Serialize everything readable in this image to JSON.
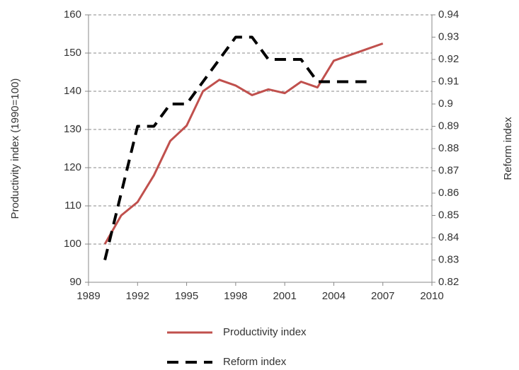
{
  "chart_data": {
    "type": "line",
    "y_label": "Productivity index (1990=100)",
    "y2_label": "Reform index",
    "x": [
      1990,
      1991,
      1992,
      1993,
      1994,
      1995,
      1996,
      1997,
      1998,
      1999,
      2000,
      2001,
      2002,
      2003,
      2004,
      2005,
      2006,
      2007
    ],
    "xlim": [
      1989,
      2010
    ],
    "xticks": [
      1989,
      1992,
      1995,
      1998,
      2001,
      2004,
      2007,
      2010
    ],
    "ylim": [
      90,
      160
    ],
    "yticks": [
      90,
      100,
      110,
      120,
      130,
      140,
      150,
      160
    ],
    "y2lim": [
      0.82,
      0.94
    ],
    "y2ticks": [
      0.82,
      0.83,
      0.84,
      0.85,
      0.86,
      0.87,
      0.88,
      0.89,
      0.9,
      0.91,
      0.92,
      0.93,
      0.94
    ],
    "grid": true,
    "series": [
      {
        "name": "Productivity index",
        "color": "#c0504d",
        "dashed": false,
        "values": [
          100,
          107.5,
          111,
          118,
          127,
          131,
          140,
          143,
          141.5,
          139,
          140.5,
          139.5,
          142.5,
          141,
          148,
          149.5,
          151,
          152.5
        ]
      },
      {
        "name": "Reform index",
        "color": "#000000",
        "dashed": true,
        "axis": "y2",
        "values": [
          0.83,
          0.86,
          0.89,
          0.89,
          0.9,
          0.9,
          0.91,
          0.92,
          0.93,
          0.93,
          0.92,
          0.92,
          0.92,
          0.91,
          0.91,
          0.91,
          0.91,
          null
        ]
      }
    ]
  }
}
